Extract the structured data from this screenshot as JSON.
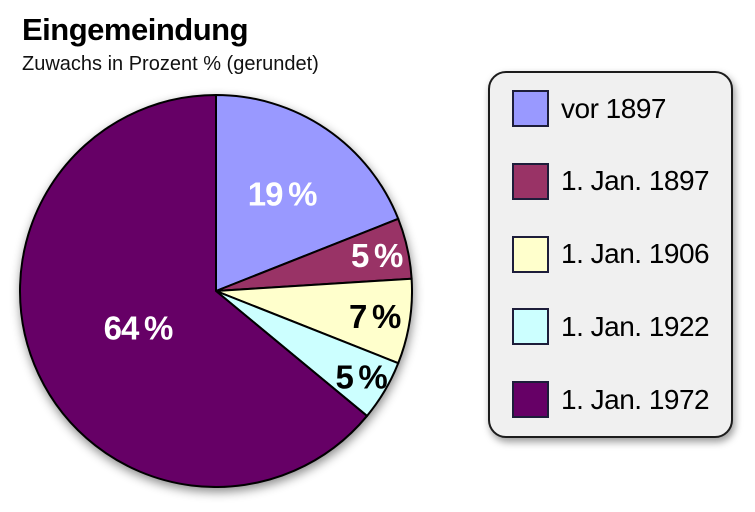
{
  "chart_data": {
    "type": "pie",
    "title": "Eingemeindung",
    "subtitle": "Zuwachs in Prozent % (gerundet)",
    "unit": "%",
    "start_angle_deg": -90,
    "direction": "clockwise",
    "stroke_color": "#000000",
    "legend_position": "right",
    "categories": [
      "vor 1897",
      "1. Jan. 1897",
      "1. Jan. 1906",
      "1. Jan. 1922",
      "1. Jan. 1972"
    ],
    "values": [
      19,
      5,
      7,
      5,
      64
    ],
    "slices": [
      {
        "label": "vor 1897",
        "value": 19,
        "display": "19 %",
        "color": "#9999FF",
        "text_color": "#ffffff",
        "label_radius": 0.6
      },
      {
        "label": "1. Jan. 1897",
        "value": 5,
        "display": "5 %",
        "color": "#993366",
        "text_color": "#ffffff",
        "label_radius": 0.84
      },
      {
        "label": "1. Jan. 1906",
        "value": 7,
        "display": "7 %",
        "color": "#FFFFCC",
        "text_color": "#000000",
        "label_radius": 0.82
      },
      {
        "label": "1. Jan. 1922",
        "value": 5,
        "display": "5 %",
        "color": "#CCFFFF",
        "text_color": "#000000",
        "label_radius": 0.86
      },
      {
        "label": "1. Jan. 1972",
        "value": 64,
        "display": "64 %",
        "color": "#660066",
        "text_color": "#ffffff",
        "label_radius": 0.44
      }
    ]
  }
}
